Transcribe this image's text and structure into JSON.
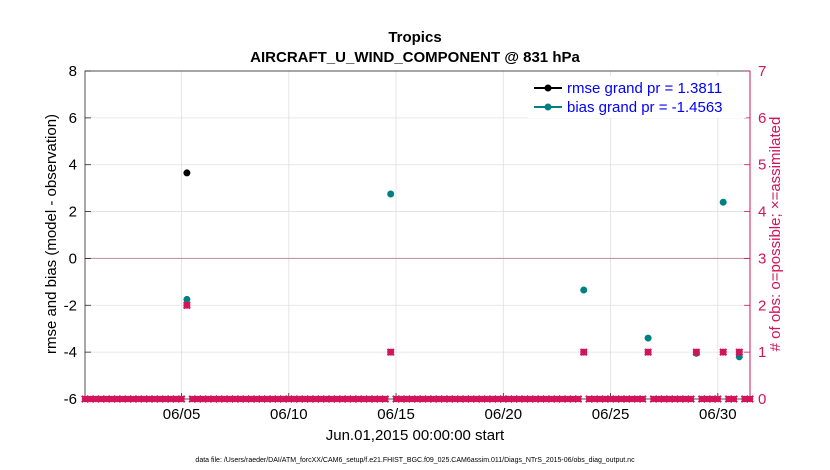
{
  "chart_data": {
    "type": "scatter",
    "title": "Tropics",
    "subtitle": "AIRCRAFT_U_WIND_COMPONENT @ 831 hPa",
    "xlabel": "Jun.01,2015 00:00:00 start",
    "ylabel": "rmse and bias (model - observation)",
    "y2label": "# of obs: o=possible; ×=assimilated",
    "xlim": [
      0.5,
      31.5
    ],
    "ylim": [
      -6,
      8
    ],
    "y2lim": [
      0,
      7
    ],
    "xticks": [
      5,
      10,
      15,
      20,
      25,
      30
    ],
    "xticklabels": [
      "06/05",
      "06/10",
      "06/15",
      "06/20",
      "06/25",
      "06/30"
    ],
    "yticks": [
      -6,
      -4,
      -2,
      0,
      2,
      4,
      6,
      8
    ],
    "yticklabels": [
      "-6",
      "-4",
      "-2",
      "0",
      "2",
      "4",
      "6",
      "8"
    ],
    "y2ticks": [
      0,
      1,
      2,
      3,
      4,
      5,
      6,
      7
    ],
    "y2ticklabels": [
      "0",
      "1",
      "2",
      "3",
      "4",
      "5",
      "6",
      "7"
    ],
    "grid": true,
    "zero_line": 0,
    "legend_position": "top-right",
    "series": [
      {
        "name": "rmse grand pr = 1.3811",
        "color": "#000000",
        "axis": "left",
        "points": [
          [
            5.25,
            3.65
          ]
        ]
      },
      {
        "name": "bias grand pr = -1.4563",
        "color": "#008080",
        "axis": "left",
        "points": [
          [
            5.25,
            -1.75
          ],
          [
            14.75,
            2.75
          ],
          [
            23.75,
            -1.35
          ],
          [
            26.75,
            -3.4
          ],
          [
            29.0,
            -4.05
          ],
          [
            30.25,
            2.4
          ],
          [
            31.0,
            -4.2
          ]
        ]
      },
      {
        "name": "possible obs",
        "color": "#d2145a",
        "axis": "right",
        "marker": "circle",
        "points": [
          [
            5.25,
            2
          ],
          [
            14.75,
            1
          ],
          [
            23.75,
            1
          ],
          [
            26.75,
            1
          ],
          [
            29.0,
            1
          ],
          [
            30.25,
            1
          ],
          [
            31.0,
            1
          ]
        ]
      },
      {
        "name": "assimilated obs",
        "color": "#d2145a",
        "axis": "right",
        "marker": "x",
        "points": [
          [
            5.25,
            2
          ],
          [
            14.75,
            1
          ],
          [
            23.75,
            1
          ],
          [
            26.75,
            1
          ],
          [
            29.0,
            1
          ],
          [
            30.25,
            1
          ],
          [
            31.0,
            1
          ]
        ]
      }
    ],
    "zero_count_days_start": 0.5,
    "zero_count_days_end": 31.5,
    "zero_count_step": 0.25
  },
  "footer": "data file: /Users/raeder/DAI/ATM_forcXX/CAM6_setup/f.e21.FHIST_BGC.f09_025.CAM6assim.011/Diags_NTrS_2015-06/obs_diag_output.nc"
}
